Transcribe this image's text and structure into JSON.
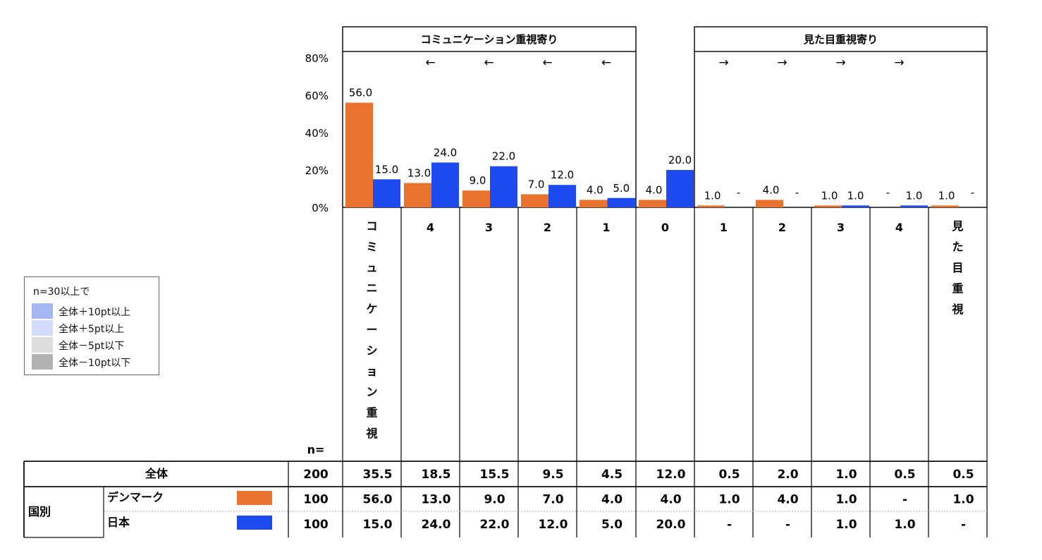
{
  "chart_data": {
    "type": "bar",
    "categories": [
      "コミュニケーション重視",
      "4",
      "3",
      "2",
      "1",
      "0",
      "1",
      "2",
      "3",
      "4",
      "見た目重視"
    ],
    "groups": [
      {
        "label": "コミュニケーション重視寄り"
      },
      {
        "label": "見た目重視寄り"
      }
    ],
    "arrows": [
      "←",
      "←",
      "←",
      "←",
      "→",
      "→",
      "→",
      "→"
    ],
    "y_ticks": [
      "80%",
      "60%",
      "40%",
      "20%",
      "0%"
    ],
    "ylim": [
      0,
      80
    ],
    "series": [
      {
        "name": "デンマーク",
        "color": "#E8722E",
        "values": [
          56.0,
          13.0,
          9.0,
          7.0,
          4.0,
          4.0,
          1.0,
          4.0,
          1.0,
          null,
          1.0
        ],
        "labels": [
          "56.0",
          "13.0",
          "9.0",
          "7.0",
          "4.0",
          "4.0",
          "1.0",
          "4.0",
          "1.0",
          "-",
          "1.0"
        ]
      },
      {
        "name": "日本",
        "color": "#1E4BF0",
        "values": [
          15.0,
          24.0,
          22.0,
          12.0,
          5.0,
          20.0,
          null,
          null,
          1.0,
          1.0,
          null
        ],
        "labels": [
          "15.0",
          "24.0",
          "22.0",
          "12.0",
          "5.0",
          "20.0",
          "-",
          "-",
          "1.0",
          "1.0",
          "-"
        ]
      }
    ]
  },
  "table": {
    "n_header": "n=",
    "rows": [
      {
        "group": "",
        "label": "全体",
        "n": "200",
        "cells": [
          "35.5",
          "18.5",
          "15.5",
          "9.5",
          "4.5",
          "12.0",
          "0.5",
          "2.0",
          "1.0",
          "0.5",
          "0.5"
        ]
      },
      {
        "group": "国別",
        "label": "デンマーク",
        "n": "100",
        "swatch": "#E8722E",
        "cells": [
          "56.0",
          "13.0",
          "9.0",
          "7.0",
          "4.0",
          "4.0",
          "1.0",
          "4.0",
          "1.0",
          "-",
          "1.0"
        ]
      },
      {
        "group": "",
        "label": "日本",
        "n": "100",
        "swatch": "#1E4BF0",
        "cells": [
          "15.0",
          "24.0",
          "22.0",
          "12.0",
          "5.0",
          "20.0",
          "-",
          "-",
          "1.0",
          "1.0",
          "-"
        ]
      }
    ]
  },
  "legend": {
    "title": "n=30以上で",
    "items": [
      {
        "label": "全体＋10pt以上",
        "color": "#A6B7F5"
      },
      {
        "label": "全体＋5pt以上",
        "color": "#D3DCFA"
      },
      {
        "label": "全体－5pt以下",
        "color": "#DCDCDC"
      },
      {
        "label": "全体－10pt以下",
        "color": "#B3B3B3"
      }
    ]
  }
}
